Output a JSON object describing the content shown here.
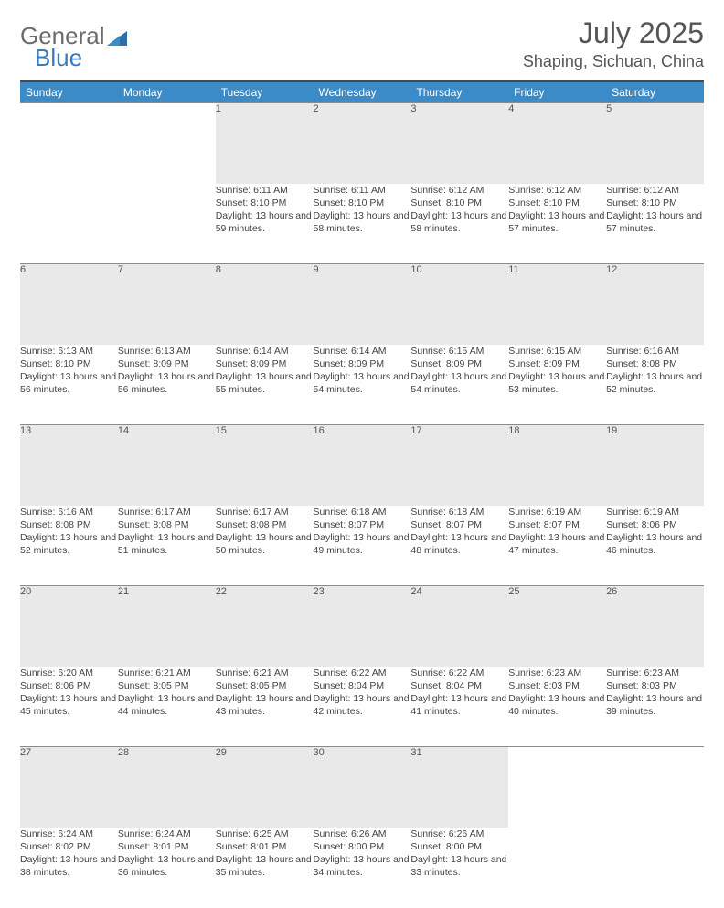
{
  "brand": {
    "part1": "General",
    "part2": "Blue"
  },
  "title": {
    "month": "July 2025",
    "location": "Shaping, Sichuan, China"
  },
  "colors": {
    "header_bg": "#3b8bc8",
    "header_text": "#ffffff",
    "daynum_bg": "#e9e9e9",
    "rule": "#4a4a4a",
    "logo_blue": "#3a7ab8",
    "text": "#444444"
  },
  "weekdays": [
    "Sunday",
    "Monday",
    "Tuesday",
    "Wednesday",
    "Thursday",
    "Friday",
    "Saturday"
  ],
  "layout": {
    "first_weekday_index": 2,
    "days_in_month": 31
  },
  "days": {
    "1": {
      "sunrise": "6:11 AM",
      "sunset": "8:10 PM",
      "daylight": "13 hours and 59 minutes."
    },
    "2": {
      "sunrise": "6:11 AM",
      "sunset": "8:10 PM",
      "daylight": "13 hours and 58 minutes."
    },
    "3": {
      "sunrise": "6:12 AM",
      "sunset": "8:10 PM",
      "daylight": "13 hours and 58 minutes."
    },
    "4": {
      "sunrise": "6:12 AM",
      "sunset": "8:10 PM",
      "daylight": "13 hours and 57 minutes."
    },
    "5": {
      "sunrise": "6:12 AM",
      "sunset": "8:10 PM",
      "daylight": "13 hours and 57 minutes."
    },
    "6": {
      "sunrise": "6:13 AM",
      "sunset": "8:10 PM",
      "daylight": "13 hours and 56 minutes."
    },
    "7": {
      "sunrise": "6:13 AM",
      "sunset": "8:09 PM",
      "daylight": "13 hours and 56 minutes."
    },
    "8": {
      "sunrise": "6:14 AM",
      "sunset": "8:09 PM",
      "daylight": "13 hours and 55 minutes."
    },
    "9": {
      "sunrise": "6:14 AM",
      "sunset": "8:09 PM",
      "daylight": "13 hours and 54 minutes."
    },
    "10": {
      "sunrise": "6:15 AM",
      "sunset": "8:09 PM",
      "daylight": "13 hours and 54 minutes."
    },
    "11": {
      "sunrise": "6:15 AM",
      "sunset": "8:09 PM",
      "daylight": "13 hours and 53 minutes."
    },
    "12": {
      "sunrise": "6:16 AM",
      "sunset": "8:08 PM",
      "daylight": "13 hours and 52 minutes."
    },
    "13": {
      "sunrise": "6:16 AM",
      "sunset": "8:08 PM",
      "daylight": "13 hours and 52 minutes."
    },
    "14": {
      "sunrise": "6:17 AM",
      "sunset": "8:08 PM",
      "daylight": "13 hours and 51 minutes."
    },
    "15": {
      "sunrise": "6:17 AM",
      "sunset": "8:08 PM",
      "daylight": "13 hours and 50 minutes."
    },
    "16": {
      "sunrise": "6:18 AM",
      "sunset": "8:07 PM",
      "daylight": "13 hours and 49 minutes."
    },
    "17": {
      "sunrise": "6:18 AM",
      "sunset": "8:07 PM",
      "daylight": "13 hours and 48 minutes."
    },
    "18": {
      "sunrise": "6:19 AM",
      "sunset": "8:07 PM",
      "daylight": "13 hours and 47 minutes."
    },
    "19": {
      "sunrise": "6:19 AM",
      "sunset": "8:06 PM",
      "daylight": "13 hours and 46 minutes."
    },
    "20": {
      "sunrise": "6:20 AM",
      "sunset": "8:06 PM",
      "daylight": "13 hours and 45 minutes."
    },
    "21": {
      "sunrise": "6:21 AM",
      "sunset": "8:05 PM",
      "daylight": "13 hours and 44 minutes."
    },
    "22": {
      "sunrise": "6:21 AM",
      "sunset": "8:05 PM",
      "daylight": "13 hours and 43 minutes."
    },
    "23": {
      "sunrise": "6:22 AM",
      "sunset": "8:04 PM",
      "daylight": "13 hours and 42 minutes."
    },
    "24": {
      "sunrise": "6:22 AM",
      "sunset": "8:04 PM",
      "daylight": "13 hours and 41 minutes."
    },
    "25": {
      "sunrise": "6:23 AM",
      "sunset": "8:03 PM",
      "daylight": "13 hours and 40 minutes."
    },
    "26": {
      "sunrise": "6:23 AM",
      "sunset": "8:03 PM",
      "daylight": "13 hours and 39 minutes."
    },
    "27": {
      "sunrise": "6:24 AM",
      "sunset": "8:02 PM",
      "daylight": "13 hours and 38 minutes."
    },
    "28": {
      "sunrise": "6:24 AM",
      "sunset": "8:01 PM",
      "daylight": "13 hours and 36 minutes."
    },
    "29": {
      "sunrise": "6:25 AM",
      "sunset": "8:01 PM",
      "daylight": "13 hours and 35 minutes."
    },
    "30": {
      "sunrise": "6:26 AM",
      "sunset": "8:00 PM",
      "daylight": "13 hours and 34 minutes."
    },
    "31": {
      "sunrise": "6:26 AM",
      "sunset": "8:00 PM",
      "daylight": "13 hours and 33 minutes."
    }
  },
  "labels": {
    "sunrise": "Sunrise:",
    "sunset": "Sunset:",
    "daylight": "Daylight:"
  }
}
